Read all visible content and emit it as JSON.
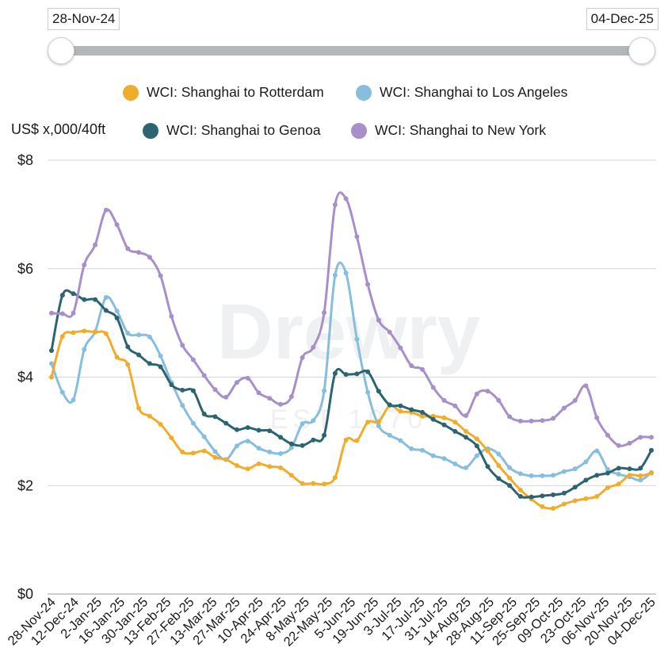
{
  "range": {
    "start": "28-Nov-24",
    "end": "04-Dec-25"
  },
  "watermark": {
    "text": "Drewry",
    "sub": "EST 1970"
  },
  "chart_data": {
    "type": "line",
    "ylabel": "US$ x,000/40ft",
    "ylim": [
      0,
      8
    ],
    "yticks": [
      0,
      2,
      4,
      6,
      8
    ],
    "ytick_labels": [
      "$0",
      "$2",
      "$4",
      "$6",
      "$8"
    ],
    "xtick_labels": [
      "28-Nov-24",
      "12-Dec-24",
      "2-Jan-25",
      "16-Jan-25",
      "30-Jan-25",
      "13-Feb-25",
      "27-Feb-25",
      "13-Mar-25",
      "27-Mar-25",
      "10-Apr-25",
      "24-Apr-25",
      "8-May-25",
      "22-May-25",
      "5-Jun-25",
      "19-Jun-25",
      "3-Jul-25",
      "17-Jul-25",
      "31-Jul-25",
      "14-Aug-25",
      "28-Aug-25",
      "11-Sep-25",
      "25-Sep-25",
      "09-Oct-25",
      "23-Oct-25",
      "06-Nov-25",
      "20-Nov-25",
      "04-Dec-25"
    ],
    "x_start": "28-Nov-24",
    "x_end": "04-Dec-25",
    "grid": true,
    "legend_placement": "top",
    "series": [
      {
        "name": "WCI: Shanghai to Rotterdam",
        "color": "#f0ad2c",
        "values": [
          4.0,
          4.75,
          4.82,
          4.85,
          4.83,
          4.8,
          4.37,
          4.23,
          3.43,
          3.28,
          3.13,
          2.88,
          2.62,
          2.6,
          2.64,
          2.52,
          2.48,
          2.37,
          2.31,
          2.4,
          2.35,
          2.33,
          2.19,
          2.04,
          2.04,
          2.03,
          2.15,
          2.84,
          2.83,
          3.17,
          3.18,
          3.47,
          3.37,
          3.35,
          3.28,
          3.28,
          3.25,
          3.17,
          3.0,
          2.86,
          2.64,
          2.37,
          2.14,
          1.92,
          1.75,
          1.61,
          1.58,
          1.66,
          1.72,
          1.76,
          1.8,
          1.96,
          2.03,
          2.19,
          2.18,
          2.23
        ]
      },
      {
        "name": "WCI: Shanghai to Los Angeles",
        "color": "#87bede",
        "values": [
          4.25,
          3.72,
          3.58,
          4.51,
          4.84,
          5.47,
          5.22,
          4.81,
          4.78,
          4.74,
          4.39,
          3.9,
          3.48,
          3.15,
          2.9,
          2.63,
          2.48,
          2.73,
          2.82,
          2.69,
          2.62,
          2.59,
          2.7,
          3.14,
          3.2,
          3.75,
          5.88,
          5.92,
          4.7,
          3.72,
          3.1,
          2.93,
          2.83,
          2.68,
          2.65,
          2.55,
          2.5,
          2.4,
          2.33,
          2.55,
          2.68,
          2.58,
          2.33,
          2.22,
          2.18,
          2.18,
          2.19,
          2.26,
          2.31,
          2.44,
          2.64,
          2.3,
          2.21,
          2.16,
          2.1,
          2.24
        ]
      },
      {
        "name": "WCI: Shanghai to Genoa",
        "color": "#2c6470",
        "values": [
          4.49,
          5.51,
          5.54,
          5.43,
          5.43,
          5.23,
          5.09,
          4.56,
          4.41,
          4.25,
          4.19,
          3.86,
          3.76,
          3.75,
          3.32,
          3.27,
          3.15,
          3.03,
          3.07,
          3.02,
          3.01,
          2.89,
          2.77,
          2.74,
          2.84,
          2.93,
          4.07,
          4.05,
          4.06,
          4.1,
          3.74,
          3.49,
          3.47,
          3.4,
          3.35,
          3.22,
          3.12,
          3.0,
          2.89,
          2.73,
          2.35,
          2.13,
          2.0,
          1.8,
          1.79,
          1.81,
          1.83,
          1.86,
          1.97,
          2.1,
          2.19,
          2.23,
          2.32,
          2.31,
          2.32,
          2.65
        ]
      },
      {
        "name": "WCI: Shanghai to New York",
        "color": "#a790c9",
        "values": [
          5.18,
          5.17,
          5.18,
          6.07,
          6.44,
          7.08,
          6.81,
          6.37,
          6.3,
          6.21,
          5.87,
          5.12,
          4.59,
          4.32,
          4.03,
          3.77,
          3.63,
          3.9,
          3.98,
          3.71,
          3.61,
          3.5,
          3.64,
          4.36,
          4.55,
          5.19,
          7.18,
          7.29,
          6.59,
          5.71,
          5.05,
          4.83,
          4.54,
          4.21,
          4.14,
          3.81,
          3.57,
          3.47,
          3.29,
          3.69,
          3.74,
          3.57,
          3.27,
          3.19,
          3.19,
          3.2,
          3.24,
          3.43,
          3.57,
          3.84,
          3.25,
          2.93,
          2.74,
          2.78,
          2.89,
          2.89
        ]
      }
    ]
  }
}
